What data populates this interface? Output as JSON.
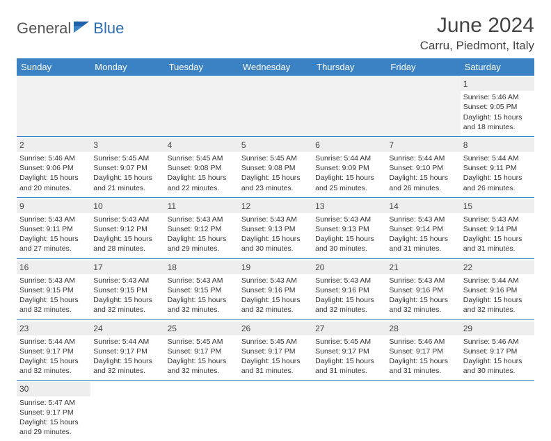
{
  "logo": {
    "part1": "General",
    "part2": "Blue"
  },
  "title": "June 2024",
  "location": "Carru, Piedmont, Italy",
  "colors": {
    "header_bg": "#3b82c4",
    "header_text": "#ffffff",
    "daynum_bg": "#eeeeee",
    "border": "#3b82c4",
    "logo_blue": "#2e6fb5",
    "text": "#333333"
  },
  "weekdays": [
    "Sunday",
    "Monday",
    "Tuesday",
    "Wednesday",
    "Thursday",
    "Friday",
    "Saturday"
  ],
  "grid": [
    [
      null,
      null,
      null,
      null,
      null,
      null,
      {
        "n": "1",
        "sunrise": "5:46 AM",
        "sunset": "9:05 PM",
        "dh": "15",
        "dm": "18"
      }
    ],
    [
      {
        "n": "2",
        "sunrise": "5:46 AM",
        "sunset": "9:06 PM",
        "dh": "15",
        "dm": "20"
      },
      {
        "n": "3",
        "sunrise": "5:45 AM",
        "sunset": "9:07 PM",
        "dh": "15",
        "dm": "21"
      },
      {
        "n": "4",
        "sunrise": "5:45 AM",
        "sunset": "9:08 PM",
        "dh": "15",
        "dm": "22"
      },
      {
        "n": "5",
        "sunrise": "5:45 AM",
        "sunset": "9:08 PM",
        "dh": "15",
        "dm": "23"
      },
      {
        "n": "6",
        "sunrise": "5:44 AM",
        "sunset": "9:09 PM",
        "dh": "15",
        "dm": "25"
      },
      {
        "n": "7",
        "sunrise": "5:44 AM",
        "sunset": "9:10 PM",
        "dh": "15",
        "dm": "26"
      },
      {
        "n": "8",
        "sunrise": "5:44 AM",
        "sunset": "9:11 PM",
        "dh": "15",
        "dm": "26"
      }
    ],
    [
      {
        "n": "9",
        "sunrise": "5:43 AM",
        "sunset": "9:11 PM",
        "dh": "15",
        "dm": "27"
      },
      {
        "n": "10",
        "sunrise": "5:43 AM",
        "sunset": "9:12 PM",
        "dh": "15",
        "dm": "28"
      },
      {
        "n": "11",
        "sunrise": "5:43 AM",
        "sunset": "9:12 PM",
        "dh": "15",
        "dm": "29"
      },
      {
        "n": "12",
        "sunrise": "5:43 AM",
        "sunset": "9:13 PM",
        "dh": "15",
        "dm": "30"
      },
      {
        "n": "13",
        "sunrise": "5:43 AM",
        "sunset": "9:13 PM",
        "dh": "15",
        "dm": "30"
      },
      {
        "n": "14",
        "sunrise": "5:43 AM",
        "sunset": "9:14 PM",
        "dh": "15",
        "dm": "31"
      },
      {
        "n": "15",
        "sunrise": "5:43 AM",
        "sunset": "9:14 PM",
        "dh": "15",
        "dm": "31"
      }
    ],
    [
      {
        "n": "16",
        "sunrise": "5:43 AM",
        "sunset": "9:15 PM",
        "dh": "15",
        "dm": "32"
      },
      {
        "n": "17",
        "sunrise": "5:43 AM",
        "sunset": "9:15 PM",
        "dh": "15",
        "dm": "32"
      },
      {
        "n": "18",
        "sunrise": "5:43 AM",
        "sunset": "9:15 PM",
        "dh": "15",
        "dm": "32"
      },
      {
        "n": "19",
        "sunrise": "5:43 AM",
        "sunset": "9:16 PM",
        "dh": "15",
        "dm": "32"
      },
      {
        "n": "20",
        "sunrise": "5:43 AM",
        "sunset": "9:16 PM",
        "dh": "15",
        "dm": "32"
      },
      {
        "n": "21",
        "sunrise": "5:43 AM",
        "sunset": "9:16 PM",
        "dh": "15",
        "dm": "32"
      },
      {
        "n": "22",
        "sunrise": "5:44 AM",
        "sunset": "9:16 PM",
        "dh": "15",
        "dm": "32"
      }
    ],
    [
      {
        "n": "23",
        "sunrise": "5:44 AM",
        "sunset": "9:17 PM",
        "dh": "15",
        "dm": "32"
      },
      {
        "n": "24",
        "sunrise": "5:44 AM",
        "sunset": "9:17 PM",
        "dh": "15",
        "dm": "32"
      },
      {
        "n": "25",
        "sunrise": "5:45 AM",
        "sunset": "9:17 PM",
        "dh": "15",
        "dm": "32"
      },
      {
        "n": "26",
        "sunrise": "5:45 AM",
        "sunset": "9:17 PM",
        "dh": "15",
        "dm": "31"
      },
      {
        "n": "27",
        "sunrise": "5:45 AM",
        "sunset": "9:17 PM",
        "dh": "15",
        "dm": "31"
      },
      {
        "n": "28",
        "sunrise": "5:46 AM",
        "sunset": "9:17 PM",
        "dh": "15",
        "dm": "31"
      },
      {
        "n": "29",
        "sunrise": "5:46 AM",
        "sunset": "9:17 PM",
        "dh": "15",
        "dm": "30"
      }
    ],
    [
      {
        "n": "30",
        "sunrise": "5:47 AM",
        "sunset": "9:17 PM",
        "dh": "15",
        "dm": "29"
      },
      null,
      null,
      null,
      null,
      null,
      null
    ]
  ],
  "labels": {
    "sunrise": "Sunrise:",
    "sunset": "Sunset:",
    "daylight_prefix": "Daylight:",
    "hours_word": "hours",
    "and_word": "and",
    "minutes_word": "minutes."
  }
}
